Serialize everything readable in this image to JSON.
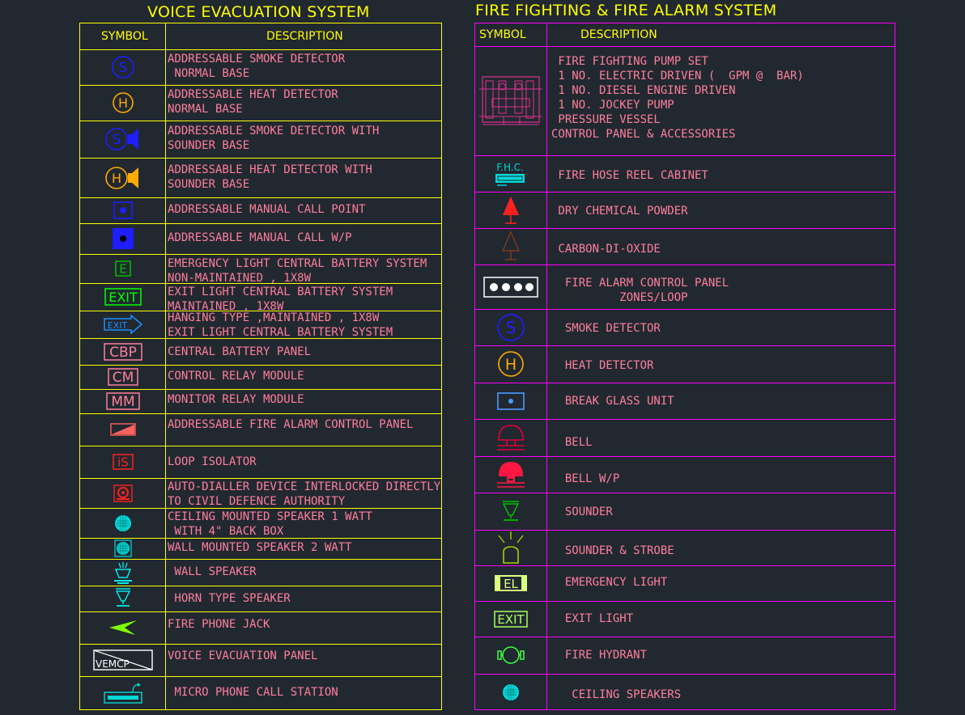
{
  "left_panel": {
    "title": "VOICE EVACUATION SYSTEM",
    "header_symbol": "SYMBOL",
    "header_description": "DESCRIPTION",
    "border_color": "#ffff00",
    "rows": [
      {
        "icon": "smoke-detector-icon",
        "lines": [
          "ADDRESSABLE SMOKE DETECTOR",
          " NORMAL BASE"
        ]
      },
      {
        "icon": "heat-detector-icon",
        "lines": [
          "ADDRESSABLE HEAT DETECTOR",
          "NORMAL BASE"
        ]
      },
      {
        "icon": "smoke-detector-sounder-icon",
        "lines": [
          "ADDRESSABLE SMOKE DETECTOR WITH",
          "SOUNDER BASE"
        ]
      },
      {
        "icon": "heat-detector-sounder-icon",
        "lines": [
          "ADDRESSABLE HEAT DETECTOR WITH",
          "SOUNDER BASE"
        ]
      },
      {
        "icon": "manual-call-point-icon",
        "lines": [
          "ADDRESSABLE MANUAL CALL POINT"
        ]
      },
      {
        "icon": "manual-call-wp-icon",
        "lines": [
          "ADDRESSABLE MANUAL CALL W/P"
        ]
      },
      {
        "icon": "emergency-light-e-icon",
        "symbol_text": "E",
        "lines": [
          "EMERGENCY LIGHT CENTRAL BATTERY SYSTEM",
          "NON-MAINTAINED , 1X8W"
        ]
      },
      {
        "icon": "exit-light-icon",
        "symbol_text": "EXIT",
        "lines": [
          "EXIT LIGHT CENTRAL BATTERY SYSTEM",
          "MAINTAINED , 1X8W"
        ]
      },
      {
        "icon": "hanging-exit-sign-icon",
        "symbol_text": "EXIT",
        "lines": [
          "HANGING TYPE ,MAINTAINED , 1X8W",
          "EXIT LIGHT CENTRAL BATTERY SYSTEM"
        ]
      },
      {
        "icon": "central-battery-panel-icon",
        "symbol_text": "CBP",
        "lines": [
          "CENTRAL BATTERY PANEL"
        ]
      },
      {
        "icon": "control-relay-module-icon",
        "symbol_text": "CM",
        "lines": [
          "CONTROL RELAY MODULE"
        ]
      },
      {
        "icon": "monitor-relay-module-icon",
        "symbol_text": "MM",
        "lines": [
          "MONITOR RELAY MODULE"
        ]
      },
      {
        "icon": "fire-alarm-panel-icon",
        "lines": [
          "ADDRESSABLE FIRE ALARM CONTROL PANEL"
        ]
      },
      {
        "icon": "loop-isolator-icon",
        "symbol_text": "iS",
        "lines": [
          "LOOP ISOLATOR"
        ]
      },
      {
        "icon": "auto-dialler-icon",
        "lines": [
          "AUTO-DIALLER DEVICE INTERLOCKED DIRECTLY",
          "TO CIVIL DEFENCE AUTHORITY"
        ]
      },
      {
        "icon": "ceiling-speaker-icon",
        "lines": [
          "CEILING MOUNTED SPEAKER 1 WATT",
          " WITH 4\" BACK BOX"
        ]
      },
      {
        "icon": "wall-speaker-2w-icon",
        "lines": [
          "WALL MOUNTED SPEAKER 2 WATT"
        ]
      },
      {
        "icon": "wall-speaker-icon",
        "lines": [
          " WALL SPEAKER"
        ]
      },
      {
        "icon": "horn-speaker-icon",
        "lines": [
          " HORN TYPE SPEAKER"
        ]
      },
      {
        "icon": "fire-phone-jack-icon",
        "lines": [
          "FIRE PHONE JACK"
        ]
      },
      {
        "icon": "voice-evacuation-panel-icon",
        "symbol_text": "VEMCP",
        "lines": [
          "VOICE EVACUATION PANEL"
        ]
      },
      {
        "icon": "microphone-station-icon",
        "lines": [
          " MICRO PHONE CALL STATION"
        ]
      }
    ]
  },
  "right_panel": {
    "title": "FIRE FIGHTING & FIRE ALARM SYSTEM",
    "header_symbol": "SYMBOL",
    "header_description": "DESCRIPTION",
    "border_color": "#ff00ff",
    "rows": [
      {
        "icon": "fire-pump-set-icon",
        "lines": [
          " FIRE FIGHTING PUMP SET",
          " 1 NO. ELECTRIC DRIVEN (  GPM @  BAR)",
          " 1 NO. DIESEL ENGINE DRIVEN",
          " 1 NO. JOCKEY PUMP",
          " PRESSURE VESSEL",
          "CONTROL PANEL & ACCESSORIES"
        ]
      },
      {
        "icon": "fire-hose-reel-icon",
        "symbol_text": "F.H.C.",
        "lines": [
          " FIRE HOSE REEL CABINET"
        ]
      },
      {
        "icon": "dry-chemical-powder-icon",
        "lines": [
          " DRY CHEMICAL POWDER"
        ]
      },
      {
        "icon": "carbon-dioxide-icon",
        "lines": [
          " CARBON-DI-OXIDE"
        ]
      },
      {
        "icon": "fire-alarm-control-panel-icon",
        "lines": [
          "  FIRE ALARM CONTROL PANEL",
          "          ZONES/LOOP"
        ]
      },
      {
        "icon": "smoke-detector-icon",
        "lines": [
          "  SMOKE DETECTOR"
        ]
      },
      {
        "icon": "heat-detector-icon",
        "lines": [
          "  HEAT DETECTOR"
        ]
      },
      {
        "icon": "break-glass-unit-icon",
        "lines": [
          "  BREAK GLASS UNIT"
        ]
      },
      {
        "icon": "bell-icon",
        "lines": [
          "  BELL"
        ]
      },
      {
        "icon": "bell-wp-icon",
        "lines": [
          "  BELL W/P"
        ]
      },
      {
        "icon": "sounder-icon",
        "lines": [
          "  SOUNDER"
        ]
      },
      {
        "icon": "sounder-strobe-icon",
        "lines": [
          "  SOUNDER & STROBE"
        ]
      },
      {
        "icon": "emergency-light-icon",
        "symbol_text": "EL",
        "lines": [
          "  EMERGENCY LIGHT"
        ]
      },
      {
        "icon": "exit-light-icon",
        "symbol_text": "EXIT",
        "lines": [
          "  EXIT LIGHT"
        ]
      },
      {
        "icon": "fire-hydrant-icon",
        "lines": [
          "  FIRE HYDRANT"
        ]
      },
      {
        "icon": "ceiling-speakers-icon",
        "lines": [
          "   CEILING SPEAKERS"
        ]
      }
    ]
  }
}
